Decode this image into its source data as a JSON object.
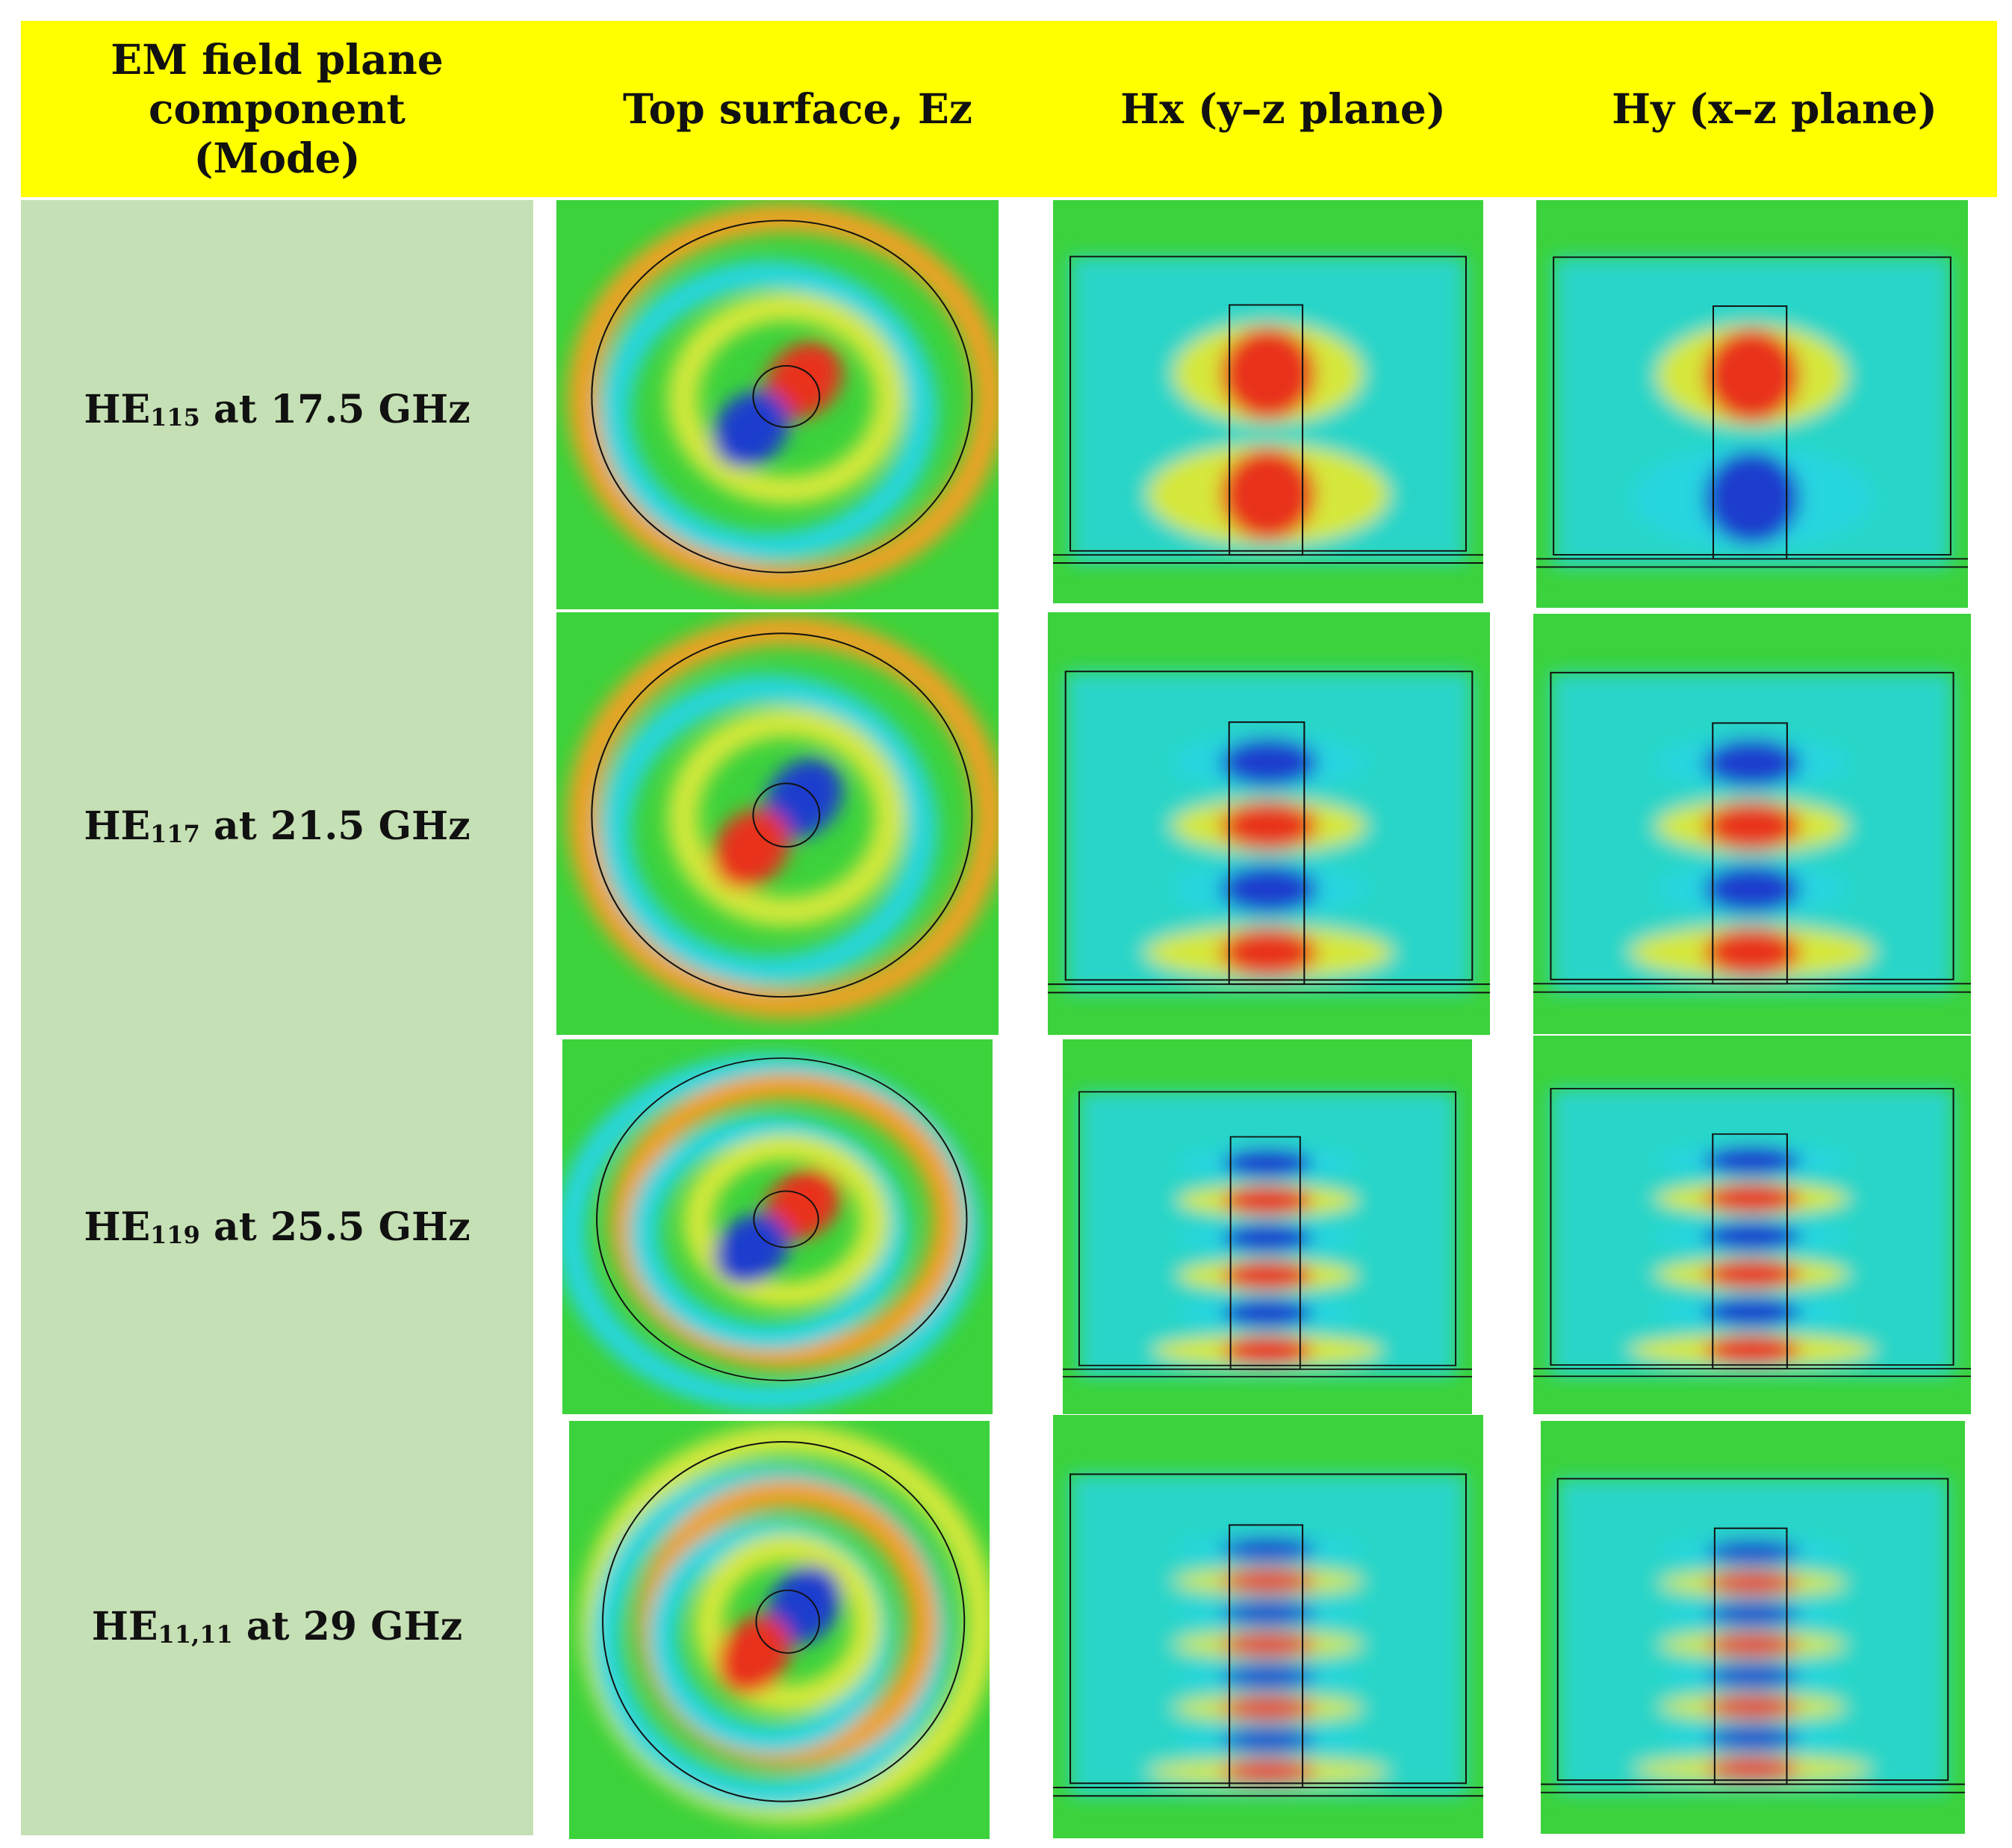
{
  "header": {
    "col1": [
      "EM field plane",
      "component",
      "(Mode)"
    ],
    "col2": "Top surface, Ez",
    "col3": "Hx (y–z plane)",
    "col4": "Hy (x–z plane)"
  },
  "rows": [
    {
      "mode_base": "HE",
      "mode_sub": "115",
      "freq_text": "at 17.5 GHz"
    },
    {
      "mode_base": "HE",
      "mode_sub": "117",
      "freq_text": "at 21.5 GHz"
    },
    {
      "mode_base": "HE",
      "mode_sub": "119",
      "freq_text": "at 25.5 GHz"
    },
    {
      "mode_base": "HE",
      "mode_sub": "11,11",
      "freq_text": "at 29 GHz"
    }
  ],
  "colors": {
    "header_bg": "#ffff00",
    "label_column_bg": "#c5e0b4",
    "field_background": "#3cd23c",
    "positive_extreme": "#e8321e",
    "negative_extreme": "#1e3ccd"
  },
  "field_maps": [
    {
      "ez_lobes": 2,
      "hx_bands": 2,
      "hy_bands": 2
    },
    {
      "ez_lobes": 2,
      "hx_bands": 4,
      "hy_bands": 4
    },
    {
      "ez_lobes": 3,
      "hx_bands": 6,
      "hy_bands": 6
    },
    {
      "ez_lobes": 4,
      "hx_bands": 8,
      "hy_bands": 8
    }
  ]
}
